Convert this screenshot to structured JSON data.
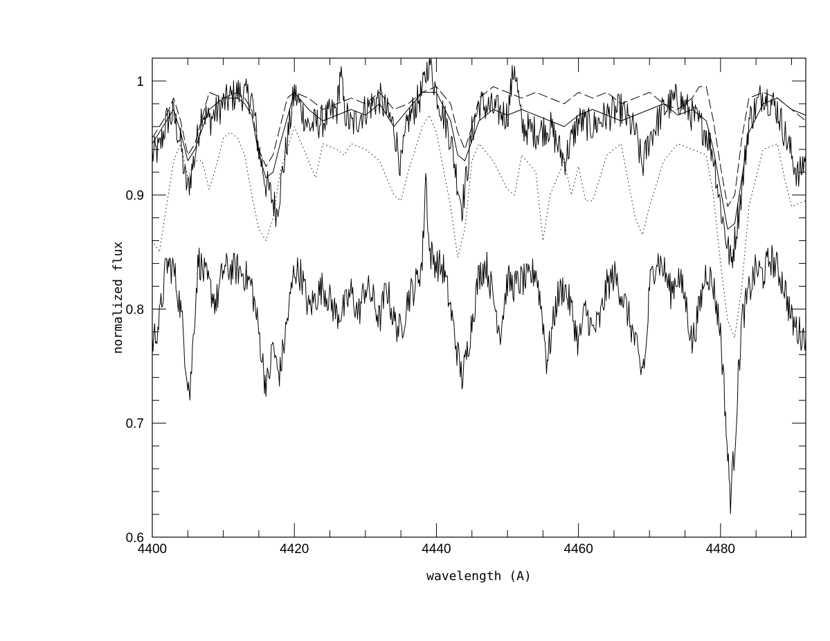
{
  "chart_data": {
    "type": "line",
    "title": "",
    "xlabel": "wavelength (A)",
    "ylabel": "normalized flux",
    "xlim": [
      4400,
      4492
    ],
    "ylim": [
      0.6,
      1.02
    ],
    "x_ticks": [
      "4400",
      "4420",
      "4440",
      "4460",
      "4480"
    ],
    "y_ticks": [
      "0.6",
      "0.7",
      "0.8",
      "0.9",
      "1"
    ],
    "grid": false,
    "legend": "none",
    "colors": {
      "line": "#000000",
      "background": "#ffffff"
    },
    "series": [
      {
        "style": "solid-noisy",
        "x": [
          4400,
          4401,
          4402,
          4403,
          4404,
          4404.6,
          4405,
          4406,
          4407,
          4408,
          4410,
          4412,
          4414,
          4415,
          4416,
          4417,
          4417.5,
          4418,
          4420,
          4422,
          4424,
          4426,
          4426.5,
          4427,
          4428,
          4430,
          4432,
          4434,
          4435,
          4436,
          4438,
          4439,
          4440,
          4442,
          4443,
          4443.6,
          4444,
          4445,
          4446,
          4448,
          4450,
          4451,
          4452,
          4454,
          4456,
          4458,
          4460,
          4462,
          4464,
          4466,
          4468,
          4469,
          4470,
          4472,
          4474,
          4476,
          4478,
          4479,
          4480,
          4481,
          4481.5,
          4482,
          4483,
          4484,
          4486,
          4488,
          4490,
          4491,
          4492
        ],
        "y": [
          0.935,
          0.94,
          0.965,
          0.97,
          0.945,
          0.915,
          0.905,
          0.935,
          0.975,
          0.965,
          0.98,
          0.99,
          0.985,
          0.94,
          0.91,
          0.895,
          0.885,
          0.905,
          0.99,
          0.96,
          0.965,
          0.975,
          1.01,
          0.975,
          0.96,
          0.975,
          0.985,
          0.96,
          0.925,
          0.965,
          0.99,
          1.02,
          0.99,
          0.95,
          0.91,
          0.89,
          0.905,
          0.955,
          0.98,
          0.975,
          0.97,
          1.015,
          0.96,
          0.955,
          0.96,
          0.93,
          0.965,
          0.96,
          0.97,
          0.975,
          0.955,
          0.925,
          0.95,
          0.975,
          0.985,
          0.97,
          0.955,
          0.935,
          0.89,
          0.855,
          0.84,
          0.86,
          0.905,
          0.965,
          0.99,
          0.975,
          0.935,
          0.915,
          0.935
        ]
      },
      {
        "style": "dashed",
        "x": [
          4400,
          4402,
          4403,
          4404,
          4405,
          4406,
          4408,
          4410,
          4412,
          4413,
          4414,
          4415,
          4416,
          4417,
          4418,
          4419,
          4420,
          4422,
          4424,
          4426,
          4428,
          4430,
          4432,
          4434,
          4436,
          4438,
          4440,
          4442,
          4443,
          4444,
          4445,
          4446,
          4448,
          4450,
          4452,
          4454,
          4456,
          4458,
          4460,
          4462,
          4464,
          4466,
          4468,
          4470,
          4472,
          4474,
          4476,
          4477,
          4478,
          4479,
          4480,
          4481,
          4482,
          4483,
          4484,
          4486,
          4488,
          4490,
          4492
        ],
        "y": [
          0.95,
          0.97,
          0.985,
          0.965,
          0.935,
          0.945,
          0.99,
          0.985,
          0.99,
          0.985,
          0.975,
          0.94,
          0.925,
          0.935,
          0.96,
          0.985,
          0.99,
          0.985,
          0.975,
          0.98,
          0.985,
          0.98,
          0.99,
          0.975,
          0.98,
          0.99,
          0.995,
          0.98,
          0.955,
          0.94,
          0.96,
          0.985,
          0.995,
          0.99,
          0.985,
          0.99,
          0.985,
          0.98,
          0.99,
          0.985,
          0.99,
          0.98,
          0.985,
          0.99,
          0.98,
          0.975,
          0.985,
          0.995,
          0.995,
          0.965,
          0.925,
          0.89,
          0.9,
          0.95,
          0.985,
          0.99,
          0.985,
          0.975,
          0.965
        ]
      },
      {
        "style": "solid",
        "x": [
          4400,
          4402,
          4403,
          4404,
          4405,
          4406,
          4408,
          4410,
          4412,
          4413,
          4414,
          4415,
          4416,
          4417,
          4418,
          4420,
          4422,
          4424,
          4426,
          4428,
          4430,
          4432,
          4434,
          4436,
          4438,
          4440,
          4442,
          4443,
          4444,
          4446,
          4448,
          4450,
          4452,
          4454,
          4456,
          4458,
          4460,
          4462,
          4464,
          4466,
          4468,
          4470,
          4472,
          4474,
          4476,
          4478,
          4479,
          4480,
          4481,
          4482,
          4483,
          4484,
          4486,
          4488,
          4490,
          4492
        ],
        "y": [
          0.945,
          0.965,
          0.975,
          0.955,
          0.93,
          0.94,
          0.975,
          0.985,
          0.985,
          0.98,
          0.97,
          0.935,
          0.915,
          0.92,
          0.945,
          0.99,
          0.975,
          0.965,
          0.97,
          0.975,
          0.97,
          0.98,
          0.96,
          0.975,
          0.99,
          0.99,
          0.965,
          0.935,
          0.93,
          0.965,
          0.975,
          0.97,
          0.975,
          0.97,
          0.965,
          0.96,
          0.97,
          0.975,
          0.97,
          0.965,
          0.97,
          0.975,
          0.98,
          0.97,
          0.975,
          0.965,
          0.94,
          0.905,
          0.87,
          0.875,
          0.915,
          0.955,
          0.98,
          0.985,
          0.975,
          0.97
        ]
      },
      {
        "style": "dotted",
        "x": [
          4400,
          4401,
          4402,
          4403,
          4404,
          4405,
          4406,
          4407,
          4408,
          4409,
          4410,
          4411,
          4412,
          4413,
          4414,
          4415,
          4416,
          4417,
          4418,
          4420,
          4422,
          4423,
          4424,
          4426,
          4427,
          4428,
          4430,
          4432,
          4434,
          4435,
          4436,
          4438,
          4439,
          4440,
          4442,
          4443,
          4444,
          4445,
          4446,
          4448,
          4450,
          4451,
          4452,
          4454,
          4455,
          4456,
          4458,
          4459,
          4460,
          4461,
          4462,
          4464,
          4466,
          4468,
          4469,
          4470,
          4472,
          4474,
          4476,
          4478,
          4479,
          4480,
          4481,
          4482,
          4483,
          4484,
          4486,
          4488,
          4489,
          4490,
          4492
        ],
        "y": [
          0.86,
          0.85,
          0.89,
          0.93,
          0.945,
          0.915,
          0.93,
          0.93,
          0.905,
          0.925,
          0.95,
          0.955,
          0.95,
          0.935,
          0.9,
          0.87,
          0.86,
          0.88,
          0.92,
          0.96,
          0.93,
          0.915,
          0.945,
          0.94,
          0.935,
          0.945,
          0.94,
          0.93,
          0.9,
          0.895,
          0.92,
          0.96,
          0.97,
          0.955,
          0.89,
          0.845,
          0.87,
          0.93,
          0.945,
          0.93,
          0.905,
          0.9,
          0.935,
          0.92,
          0.86,
          0.9,
          0.93,
          0.9,
          0.925,
          0.895,
          0.895,
          0.935,
          0.945,
          0.88,
          0.865,
          0.89,
          0.93,
          0.945,
          0.94,
          0.935,
          0.9,
          0.84,
          0.79,
          0.775,
          0.82,
          0.89,
          0.94,
          0.945,
          0.915,
          0.89,
          0.895
        ]
      },
      {
        "style": "solid-noisy",
        "x": [
          4400,
          4401,
          4402,
          4403,
          4404,
          4404.8,
          4405.3,
          4406,
          4406.5,
          4407,
          4408,
          4409,
          4410,
          4411,
          4412,
          4413,
          4414,
          4415,
          4415.8,
          4416.3,
          4417,
          4417.6,
          4418,
          4420,
          4421,
          4422,
          4423,
          4424,
          4426,
          4427,
          4428,
          4429,
          4430,
          4431,
          4432,
          4433,
          4434,
          4435,
          4436,
          4437,
          4438,
          4438.5,
          4439,
          4440,
          4441,
          4442,
          4443,
          4443.6,
          4444,
          4445,
          4446,
          4447,
          4448,
          4449,
          4450,
          4451,
          4452,
          4453,
          4454,
          4455,
          4455.5,
          4456,
          4457,
          4458,
          4459,
          4460,
          4461,
          4462,
          4463,
          4464,
          4465,
          4466,
          4467,
          4468,
          4468.8,
          4469.5,
          4470,
          4471,
          4472,
          4473,
          4474,
          4475,
          4476,
          4477,
          4478,
          4479,
          4480,
          4480.6,
          4481,
          4481.4,
          4482,
          4482.5,
          4483,
          4484,
          4485,
          4486,
          4487,
          4488,
          4489,
          4490,
          4491,
          4492
        ],
        "y": [
          0.77,
          0.79,
          0.84,
          0.835,
          0.8,
          0.75,
          0.725,
          0.8,
          0.845,
          0.835,
          0.82,
          0.805,
          0.835,
          0.835,
          0.835,
          0.83,
          0.82,
          0.78,
          0.74,
          0.735,
          0.77,
          0.745,
          0.745,
          0.835,
          0.83,
          0.8,
          0.81,
          0.82,
          0.795,
          0.8,
          0.815,
          0.795,
          0.82,
          0.81,
          0.79,
          0.82,
          0.79,
          0.78,
          0.81,
          0.82,
          0.84,
          0.92,
          0.85,
          0.84,
          0.835,
          0.8,
          0.76,
          0.74,
          0.75,
          0.79,
          0.83,
          0.84,
          0.81,
          0.78,
          0.825,
          0.82,
          0.825,
          0.825,
          0.835,
          0.79,
          0.755,
          0.77,
          0.81,
          0.82,
          0.8,
          0.77,
          0.8,
          0.78,
          0.79,
          0.82,
          0.83,
          0.815,
          0.795,
          0.77,
          0.745,
          0.76,
          0.82,
          0.845,
          0.835,
          0.815,
          0.83,
          0.81,
          0.77,
          0.8,
          0.835,
          0.82,
          0.78,
          0.72,
          0.67,
          0.635,
          0.68,
          0.74,
          0.79,
          0.815,
          0.835,
          0.83,
          0.845,
          0.835,
          0.82,
          0.79,
          0.78,
          0.775
        ]
      }
    ]
  }
}
